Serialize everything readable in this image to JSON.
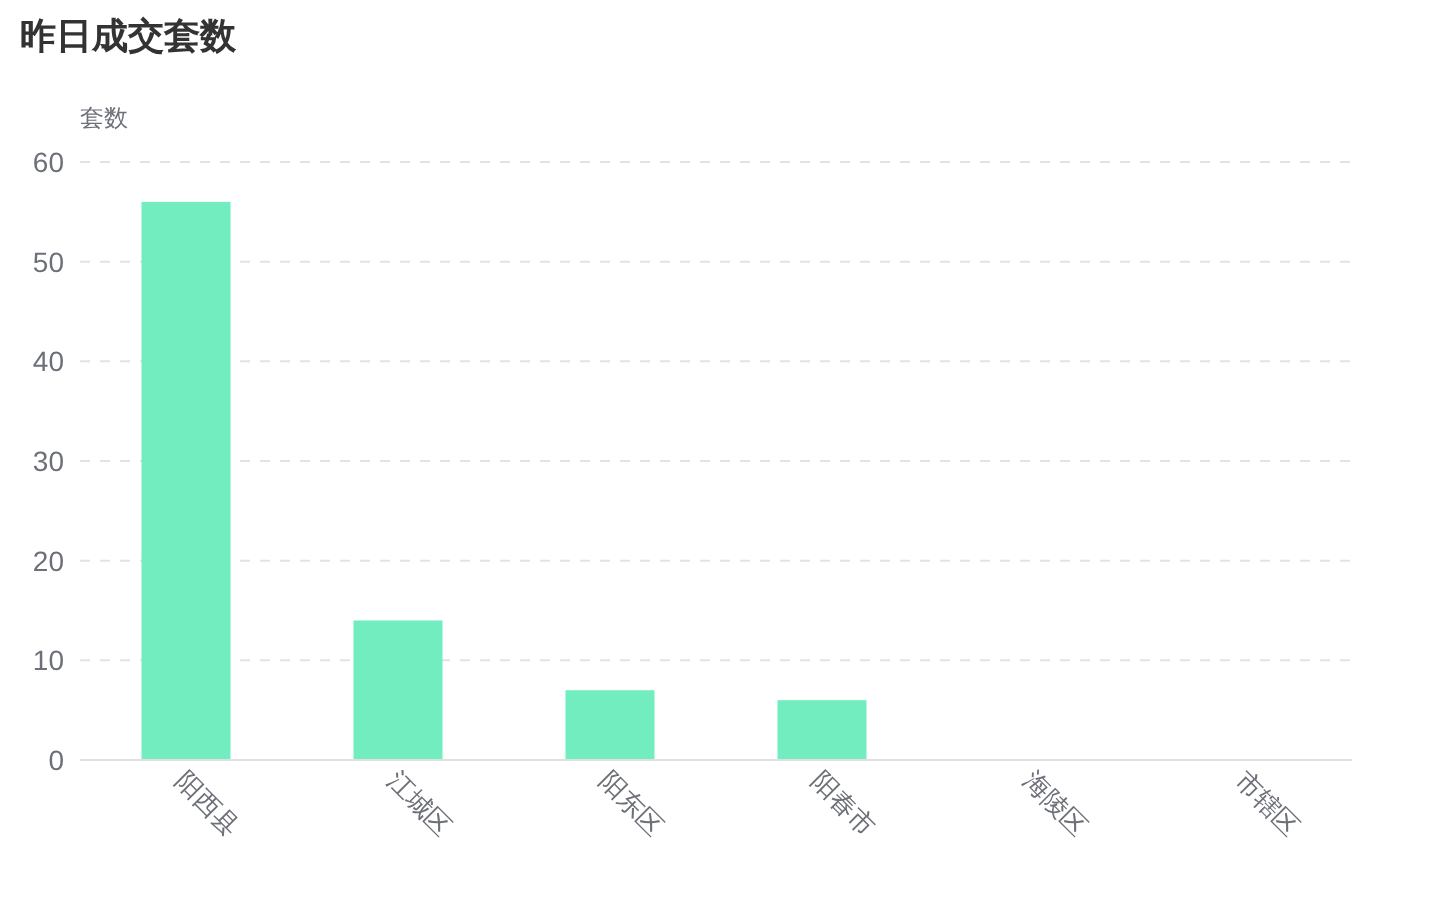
{
  "chart_data": {
    "type": "bar",
    "title": "昨日成交套数",
    "ylabel": "套数",
    "categories": [
      "阳西县",
      "江城区",
      "阳东区",
      "阳春市",
      "海陵区",
      "市辖区"
    ],
    "values": [
      56,
      14,
      7,
      6,
      0,
      0
    ],
    "color": "#72edbf",
    "ylim": [
      0,
      60
    ],
    "yticks": [
      0,
      10,
      20,
      30,
      40,
      50,
      60
    ],
    "grid": "y"
  }
}
